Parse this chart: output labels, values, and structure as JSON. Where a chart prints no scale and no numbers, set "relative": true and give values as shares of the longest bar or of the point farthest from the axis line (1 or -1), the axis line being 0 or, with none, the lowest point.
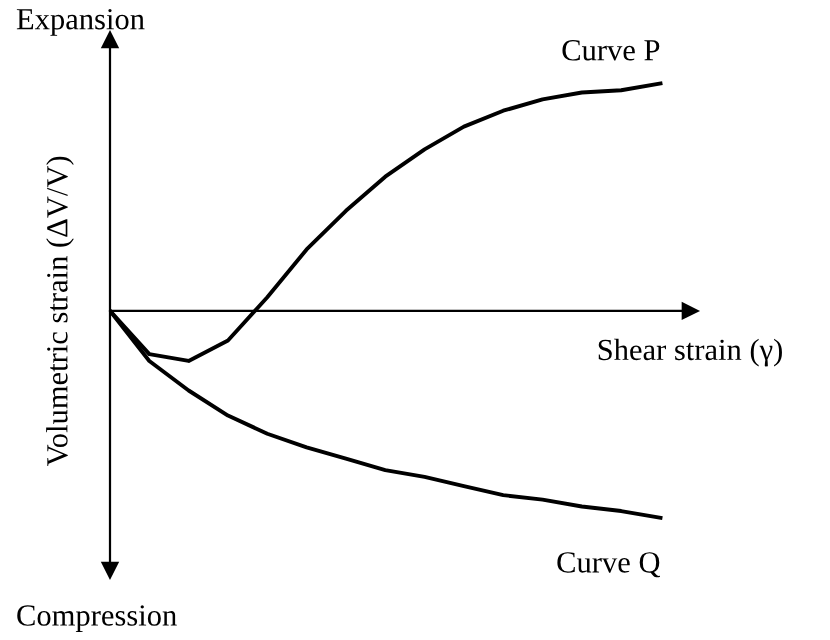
{
  "chart_data": {
    "type": "line",
    "relative": true,
    "ylabel": "Volumetric strain (ΔV/V)",
    "xlabel": "Shear strain (γ)",
    "annotations": [
      "Expansion",
      "Compression"
    ],
    "categories": [
      null,
      null,
      null,
      null,
      null,
      null,
      null,
      null,
      null,
      null,
      null,
      null,
      null,
      null,
      null
    ],
    "series": [
      {
        "name": "Curve P",
        "color": "#000000",
        "values": [
          0,
          -0.19,
          -0.22,
          -0.13,
          0.06,
          0.27,
          0.44,
          0.59,
          0.71,
          0.81,
          0.88,
          0.93,
          0.96,
          0.97,
          1
        ]
      },
      {
        "name": "Curve Q",
        "color": "#000000",
        "values": [
          0,
          -0.22,
          -0.35,
          -0.46,
          -0.54,
          -0.6,
          -0.65,
          -0.7,
          -0.73,
          -0.77,
          -0.81,
          -0.83,
          -0.86,
          -0.88,
          -0.91
        ]
      }
    ],
    "legend": false,
    "marker": "none",
    "line_style": "solid"
  }
}
